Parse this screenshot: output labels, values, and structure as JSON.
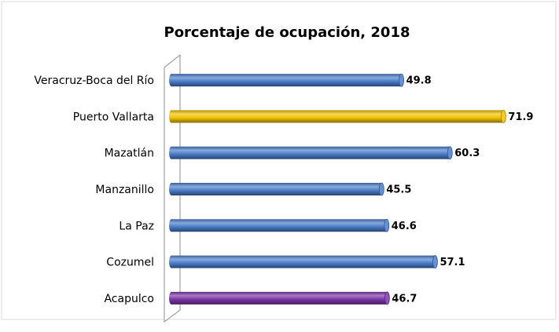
{
  "chart_data": {
    "type": "bar",
    "orientation": "horizontal",
    "title": "Porcentaje de ocupación, 2018",
    "categories": [
      "Veracruz-Boca del Río",
      "Puerto Vallarta",
      "Mazatlán",
      "Manzanillo",
      "La Paz",
      "Cozumel",
      "Acapulco"
    ],
    "values": [
      49.8,
      71.9,
      60.3,
      45.5,
      46.6,
      57.1,
      46.7
    ],
    "colors": [
      "#4a7cc9",
      "#f2c200",
      "#4a7cc9",
      "#4a7cc9",
      "#4a7cc9",
      "#4a7cc9",
      "#7a35a8"
    ],
    "xlim": [
      0,
      80
    ]
  }
}
